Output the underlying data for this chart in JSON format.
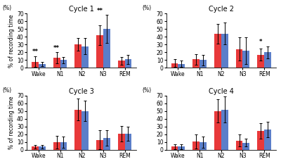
{
  "cycles": [
    "Cycle 1",
    "Cycle 2",
    "Cycle 3",
    "Cycle 4"
  ],
  "categories": [
    "Wake",
    "N1",
    "N2",
    "N3",
    "REM"
  ],
  "red_values": [
    [
      8,
      13,
      30,
      42,
      9
    ],
    [
      6,
      11,
      44,
      24,
      17
    ],
    [
      4,
      10,
      52,
      13,
      21
    ],
    [
      4,
      11,
      50,
      12,
      24
    ]
  ],
  "blue_values": [
    [
      5,
      10,
      28,
      50,
      11
    ],
    [
      5,
      10,
      44,
      22,
      20
    ],
    [
      4,
      10,
      50,
      15,
      21
    ],
    [
      4,
      10,
      52,
      9,
      26
    ]
  ],
  "red_errors": [
    [
      7,
      7,
      8,
      13,
      5
    ],
    [
      5,
      7,
      13,
      15,
      8
    ],
    [
      2,
      8,
      14,
      12,
      10
    ],
    [
      3,
      9,
      15,
      8,
      10
    ]
  ],
  "blue_errors": [
    [
      3,
      4,
      10,
      18,
      6
    ],
    [
      4,
      7,
      14,
      17,
      8
    ],
    [
      2,
      7,
      13,
      10,
      9
    ],
    [
      3,
      7,
      17,
      5,
      10
    ]
  ],
  "significance": [
    [
      [
        "Wake",
        "**"
      ],
      [
        "N1",
        "**"
      ],
      [
        "N3",
        "**"
      ]
    ],
    [
      [
        "REM",
        "*"
      ]
    ],
    [],
    []
  ],
  "ylim": [
    0,
    70
  ],
  "yticks": [
    0,
    10,
    20,
    30,
    40,
    50,
    60,
    70
  ],
  "ylabel": "% of recording time",
  "red_color": "#e8393a",
  "blue_color": "#5b7ec9",
  "bar_width": 0.32,
  "figsize": [
    4.0,
    2.33
  ],
  "dpi": 100
}
